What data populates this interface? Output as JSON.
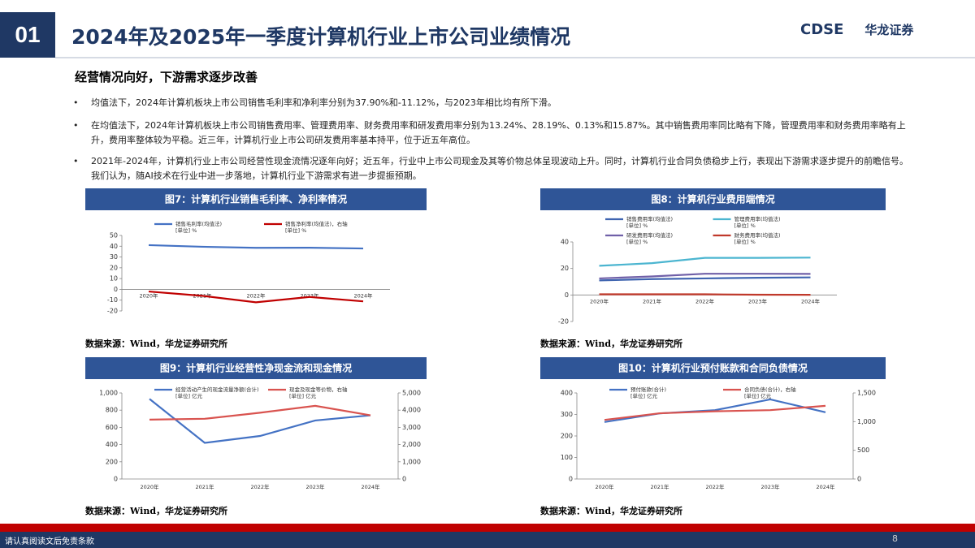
{
  "header": {
    "number": "01",
    "title": "2024年及2025年一季度计算机行业上市公司业绩情况",
    "logo_en": "CDSE",
    "logo_cn": "华龙证券"
  },
  "subtitle": "经营情况向好，下游需求逐步改善",
  "bullets": [
    "均值法下，2024年计算机板块上市公司销售毛利率和净利率分别为37.90%和-11.12%，与2023年相比均有所下滑。",
    "在均值法下，2024年计算机板块上市公司销售费用率、管理费用率、财务费用率和研发费用率分别为13.24%、28.19%、0.13%和15.87%。其中销售费用率同比略有下降，管理费用率和财务费用率略有上升，费用率整体较为平稳。近三年，计算机行业上市公司研发费用率基本持平，位于近五年高位。",
    "2021年-2024年，计算机行业上市公司经营性现金流情况逐年向好；近五年，行业中上市公司现金及其等价物总体呈现波动上升。同时，计算机行业合同负债稳步上行，表现出下游需求逐步提升的前瞻信号。我们认为，随AI技术在行业中进一步落地，计算机行业下游需求有进一步提振预期。"
  ],
  "chart_data": [
    {
      "type": "line",
      "title": "图7：计算机行业销售毛利率、净利率情况",
      "source": "数据来源：Wind，华龙证券研究所",
      "categories": [
        "2020年",
        "2021年",
        "2022年",
        "2023年",
        "2024年"
      ],
      "ylim": [
        -20,
        50
      ],
      "yticks": [
        -20,
        -10,
        0,
        10,
        20,
        30,
        40,
        50
      ],
      "series": [
        {
          "name": "销售毛利率(均值法)",
          "unit": "[单位] %",
          "color": "#4472c4",
          "values": [
            41,
            39.5,
            38.5,
            38.6,
            37.9
          ]
        },
        {
          "name": "销售净利率(均值法)，右轴",
          "unit": "[单位] %",
          "color": "#c00000",
          "values": [
            -2,
            -6,
            -12,
            -7,
            -11.12
          ]
        }
      ]
    },
    {
      "type": "line",
      "title": "图8：计算机行业费用端情况",
      "source": "数据来源：Wind，华龙证券研究所",
      "categories": [
        "2020年",
        "2021年",
        "2022年",
        "2023年",
        "2024年"
      ],
      "ylim": [
        -20,
        40
      ],
      "yticks": [
        -20,
        0,
        20,
        40
      ],
      "series": [
        {
          "name": "销售费用率(均值法)",
          "unit": "[单位] %",
          "color": "#3f64b0",
          "values": [
            11,
            12,
            12.5,
            13,
            13.24
          ]
        },
        {
          "name": "管理费用率(均值法)",
          "unit": "[单位] %",
          "color": "#4bb5d0",
          "values": [
            22,
            24,
            28,
            28,
            28.19
          ]
        },
        {
          "name": "研发费用率(均值法)",
          "unit": "[单位] %",
          "color": "#7060a8",
          "values": [
            12.5,
            14,
            16,
            16,
            15.87
          ]
        },
        {
          "name": "财务费用率(均值法)",
          "unit": "[单位] %",
          "color": "#c0392b",
          "values": [
            0.5,
            0.5,
            0.5,
            0.2,
            0.13
          ]
        }
      ]
    },
    {
      "type": "line",
      "title": "图9：计算机行业经营性净现金流和现金情况",
      "source": "数据来源：Wind，华龙证券研究所",
      "categories": [
        "2020年",
        "2021年",
        "2022年",
        "2023年",
        "2024年"
      ],
      "ylim": [
        0,
        1000
      ],
      "yticks": [
        0,
        200,
        400,
        600,
        800,
        {
          "value": 1000,
          "label": "1,000"
        }
      ],
      "y2lim": [
        0,
        5000
      ],
      "y2ticks": [
        0,
        {
          "value": 1000,
          "label": "1,000"
        },
        {
          "value": 2000,
          "label": "2,000"
        },
        {
          "value": 3000,
          "label": "3,000"
        },
        {
          "value": 4000,
          "label": "4,000"
        },
        {
          "value": 5000,
          "label": "5,000"
        }
      ],
      "series": [
        {
          "name": "经营活动产生的现金流量净额(合计)",
          "unit": "[单位] 亿元",
          "color": "#4472c4",
          "values": [
            930,
            420,
            500,
            680,
            740
          ]
        },
        {
          "name": "现金及现金等价物，右轴",
          "unit": "[单位] 亿元",
          "color": "#d9534f",
          "axis": "y2",
          "values": [
            3450,
            3500,
            3850,
            4250,
            3700
          ]
        }
      ]
    },
    {
      "type": "line",
      "title": "图10：计算机行业预付账款和合同负债情况",
      "source": "数据来源：Wind，华龙证券研究所",
      "categories": [
        "2020年",
        "2021年",
        "2022年",
        "2023年",
        "2024年"
      ],
      "ylim": [
        0,
        400
      ],
      "yticks": [
        0,
        100,
        200,
        300,
        400
      ],
      "y2lim": [
        0,
        1500
      ],
      "y2ticks": [
        0,
        500,
        {
          "value": 1000,
          "label": "1,000"
        },
        {
          "value": 1500,
          "label": "1,500"
        }
      ],
      "series": [
        {
          "name": "预付账款(合计)",
          "unit": "[单位] 亿元",
          "color": "#4472c4",
          "values": [
            265,
            305,
            320,
            370,
            310
          ]
        },
        {
          "name": "合同负债(合计)，右轴",
          "unit": "[单位] 亿元",
          "color": "#d9534f",
          "axis": "y2",
          "values": [
            1030,
            1145,
            1180,
            1200,
            1275
          ]
        }
      ]
    }
  ],
  "footer": {
    "disclaimer": "请认真阅读文后免责条款",
    "page": "8"
  }
}
